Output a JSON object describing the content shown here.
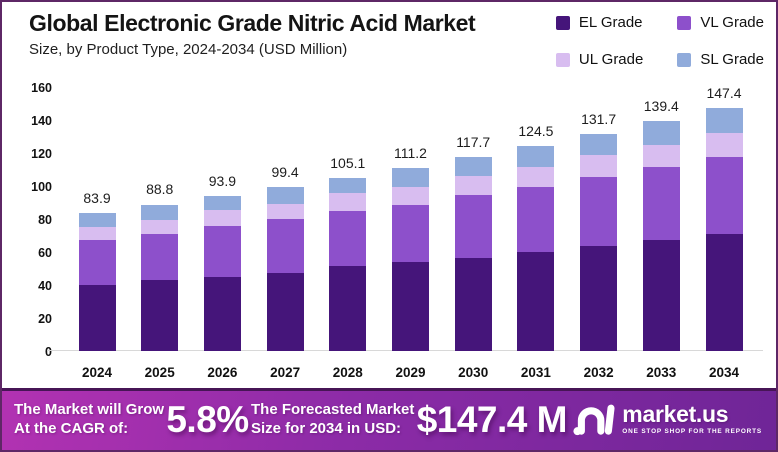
{
  "header": {
    "title": "Global Electronic Grade Nitric Acid Market",
    "subtitle": "Size, by Product Type, 2024-2034 (USD Million)"
  },
  "legend": [
    {
      "label": "EL Grade",
      "color": "#45157a"
    },
    {
      "label": "VL Grade",
      "color": "#8d50cb"
    },
    {
      "label": "UL Grade",
      "color": "#d8bdf0"
    },
    {
      "label": "SL Grade",
      "color": "#90abdb"
    }
  ],
  "chart_data": {
    "type": "bar",
    "stacked": true,
    "title": "Global Electronic Grade Nitric Acid Market Size, by Product Type, 2024-2034 (USD Million)",
    "xlabel": "",
    "ylabel": "USD Million",
    "ylim": [
      0,
      160
    ],
    "yticks": [
      0,
      20,
      40,
      60,
      80,
      100,
      120,
      140,
      160
    ],
    "grid": false,
    "legend_position": "top-right",
    "categories": [
      "2024",
      "2025",
      "2026",
      "2027",
      "2028",
      "2029",
      "2030",
      "2031",
      "2032",
      "2033",
      "2034"
    ],
    "series": [
      {
        "name": "EL Grade",
        "color": "#45157a",
        "values": [
          40.2,
          42.9,
          45.0,
          47.4,
          51.5,
          54.0,
          56.3,
          59.8,
          63.4,
          67.1,
          70.8
        ]
      },
      {
        "name": "VL Grade",
        "color": "#8d50cb",
        "values": [
          26.9,
          28.3,
          30.9,
          32.4,
          33.4,
          34.2,
          38.0,
          39.6,
          42.0,
          44.4,
          46.9
        ]
      },
      {
        "name": "UL Grade",
        "color": "#d8bdf0",
        "values": [
          8.3,
          8.1,
          9.4,
          9.6,
          11.1,
          11.0,
          11.7,
          12.2,
          13.2,
          13.4,
          14.5
        ]
      },
      {
        "name": "SL Grade",
        "color": "#90abdb",
        "values": [
          8.5,
          9.5,
          8.6,
          10.0,
          9.1,
          12.0,
          11.7,
          12.9,
          13.1,
          14.5,
          15.2
        ]
      }
    ],
    "totals": [
      83.9,
      88.8,
      93.9,
      99.4,
      105.1,
      111.2,
      117.7,
      124.5,
      131.7,
      139.4,
      147.4
    ],
    "total_labels": [
      "83.9",
      "88.8",
      "93.9",
      "99.4",
      "105.1",
      "111.2",
      "117.7",
      "124.5",
      "131.7",
      "139.4",
      "147.4"
    ]
  },
  "footer": {
    "cagr_label": "The Market will Grow\nAt the CAGR of:",
    "cagr_value": "5.8%",
    "forecast_label": "The Forecasted Market\nSize for 2034 in USD:",
    "forecast_value": "$147.4 M",
    "brand_name": "market.us",
    "brand_tagline": "ONE STOP SHOP FOR THE REPORTS"
  }
}
